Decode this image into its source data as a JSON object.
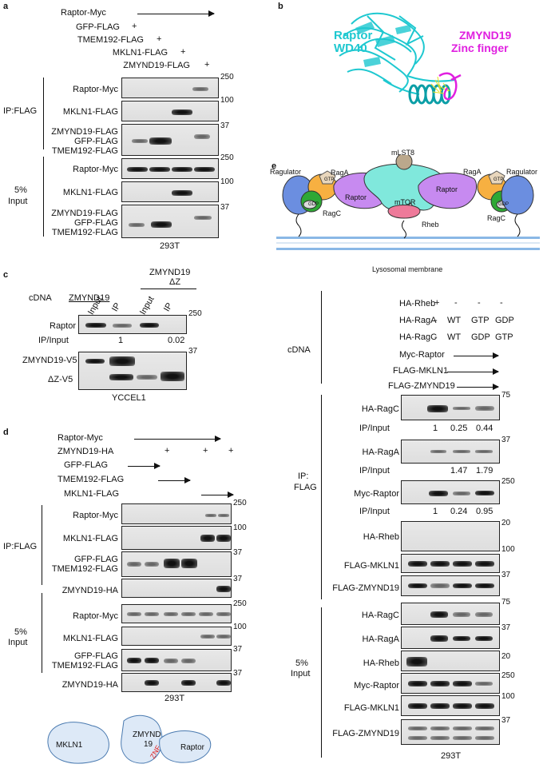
{
  "panels": {
    "a": {
      "letter": "a",
      "header": [
        "Raptor-Myc",
        "GFP-FLAG",
        "TMEM192-FLAG",
        "MKLN1-FLAG",
        "ZMYND19-FLAG"
      ],
      "plus": "+",
      "ip_label": "IP:FLAG",
      "input_label": [
        "5%",
        "Input"
      ],
      "blots_ip": [
        "Raptor-Myc",
        "MKLN1-FLAG",
        "ZMYND19-FLAG",
        "GFP-FLAG",
        "TMEM192-FLAG"
      ],
      "blots_input": [
        "Raptor-Myc",
        "MKLN1-FLAG",
        "ZMYND19-FLAG",
        "GFP-FLAG",
        "TMEM192-FLAG"
      ],
      "mw": [
        "250",
        "100",
        "37",
        "250",
        "100",
        "37"
      ],
      "cell": "293T"
    },
    "b": {
      "letter": "b",
      "raptor": [
        "Raptor",
        "WD40"
      ],
      "zmynd": [
        "ZMYND19",
        "Zinc finger"
      ]
    },
    "c": {
      "letter": "c",
      "cdna": "cDNA",
      "zmynd19": "ZMYND19",
      "zmynd19b": [
        "ZMYND19",
        "ΔZ"
      ],
      "lanes": [
        "Input",
        "IP",
        "Input",
        "IP"
      ],
      "raptor": "Raptor",
      "ipinput": "IP/Input",
      "ratio": [
        "1",
        "0.02"
      ],
      "v5": "ZMYND19-V5",
      "dz": "ΔZ-V5",
      "mw": [
        "250",
        "37"
      ],
      "cell": "YCCEL1"
    },
    "d": {
      "letter": "d",
      "header": [
        "Raptor-Myc",
        "ZMYND19-HA",
        "GFP-FLAG",
        "TMEM192-FLAG",
        "MKLN1-FLAG"
      ],
      "plus": "+",
      "ip_label": "IP:FLAG",
      "input_label": [
        "5%",
        "Input"
      ],
      "blots": [
        "Raptor-Myc",
        "MKLN1-FLAG",
        "GFP-FLAG",
        "TMEM192-FLAG",
        "ZMYND19-HA",
        "Raptor-Myc",
        "MKLN1-FLAG",
        "GFP-FLAG",
        "TMEM192-FLAG",
        "ZMYND19-HA"
      ],
      "mw": [
        "250",
        "100",
        "37",
        "37",
        "250",
        "100",
        "37",
        "37"
      ],
      "cell": "293T",
      "schematic": [
        "MKLN1",
        "ZMYND",
        "19",
        "ZNF",
        "Raptor"
      ]
    },
    "e": {
      "letter": "e",
      "diagram": [
        "Ragulator",
        "RagA",
        "GTP",
        "GDP",
        "RagC",
        "Raptor",
        "mTOR",
        "mLST8",
        "Rheb",
        "Raptor",
        "RagA",
        "GTP",
        "GDP",
        "RagC",
        "Ragulator",
        "Lysosomal membrane"
      ],
      "rows": [
        "HA-Rheb",
        "HA-RagA",
        "HA-RagC"
      ],
      "rheb_vals": [
        "+",
        "-",
        "-",
        "-"
      ],
      "raga_vals": [
        "-",
        "WT",
        "GTP",
        "GDP"
      ],
      "ragc_vals": [
        "-",
        "WT",
        "GDP",
        "GTP"
      ],
      "cdna": "cDNA",
      "arrows": [
        "Myc-Raptor",
        "FLAG-MKLN1",
        "FLAG-ZMYND19"
      ],
      "ip": [
        "IP:",
        "FLAG"
      ],
      "input": [
        "5%",
        "Input"
      ],
      "blots_ip": [
        "HA-RagC",
        "HA-RagA",
        "Myc-Raptor",
        "HA-Rheb",
        "FLAG-MKLN1",
        "FLAG-ZMYND19"
      ],
      "blots_input": [
        "HA-RagC",
        "HA-RagA",
        "HA-Rheb",
        "Myc-Raptor",
        "FLAG-MKLN1",
        "FLAG-ZMYND19"
      ],
      "ipinput": "IP/Input",
      "ragc_ratio": [
        "1",
        "0.25",
        "0.44"
      ],
      "raga_ratio": [
        "1.47",
        "1.79"
      ],
      "raptor_ratio": [
        "1",
        "0.24",
        "0.95"
      ],
      "mw": [
        "75",
        "37",
        "250",
        "20",
        "100",
        "37",
        "75",
        "37",
        "20",
        "250",
        "100",
        "37"
      ],
      "cell": "293T"
    }
  }
}
